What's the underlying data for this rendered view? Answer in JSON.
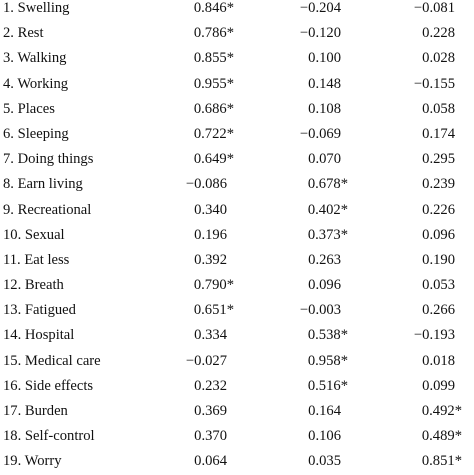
{
  "rows": [
    {
      "label": "1. Swelling",
      "v1": "0.846*",
      "v2": "−0.204",
      "v3": "−0.081"
    },
    {
      "label": "2. Rest",
      "v1": "0.786*",
      "v2": "−0.120",
      "v3": "0.228"
    },
    {
      "label": "3. Walking",
      "v1": "0.855*",
      "v2": "0.100",
      "v3": "0.028"
    },
    {
      "label": "4. Working",
      "v1": "0.955*",
      "v2": "0.148",
      "v3": "−0.155"
    },
    {
      "label": "5. Places",
      "v1": "0.686*",
      "v2": "0.108",
      "v3": "0.058"
    },
    {
      "label": "6. Sleeping",
      "v1": "0.722*",
      "v2": "−0.069",
      "v3": "0.174"
    },
    {
      "label": "7. Doing things",
      "v1": "0.649*",
      "v2": "0.070",
      "v3": "0.295"
    },
    {
      "label": "8. Earn living",
      "v1": "−0.086",
      "v2": "0.678*",
      "v3": "0.239"
    },
    {
      "label": "9. Recreational",
      "v1": "0.340",
      "v2": "0.402*",
      "v3": "0.226"
    },
    {
      "label": "10. Sexual",
      "v1": "0.196",
      "v2": "0.373*",
      "v3": "0.096"
    },
    {
      "label": "11. Eat less",
      "v1": "0.392",
      "v2": "0.263",
      "v3": "0.190"
    },
    {
      "label": "12. Breath",
      "v1": "0.790*",
      "v2": "0.096",
      "v3": "0.053"
    },
    {
      "label": "13. Fatigued",
      "v1": "0.651*",
      "v2": "−0.003",
      "v3": "0.266"
    },
    {
      "label": "14. Hospital",
      "v1": "0.334",
      "v2": "0.538*",
      "v3": "−0.193"
    },
    {
      "label": "15. Medical care",
      "v1": "−0.027",
      "v2": "0.958*",
      "v3": "0.018"
    },
    {
      "label": "16. Side effects",
      "v1": "0.232",
      "v2": "0.516*",
      "v3": "0.099"
    },
    {
      "label": "17. Burden",
      "v1": "0.369",
      "v2": "0.164",
      "v3": "0.492*"
    },
    {
      "label": "18. Self-control",
      "v1": "0.370",
      "v2": "0.106",
      "v3": "0.489*"
    },
    {
      "label": "19. Worry",
      "v1": "0.064",
      "v2": "0.035",
      "v3": "0.851*"
    }
  ]
}
